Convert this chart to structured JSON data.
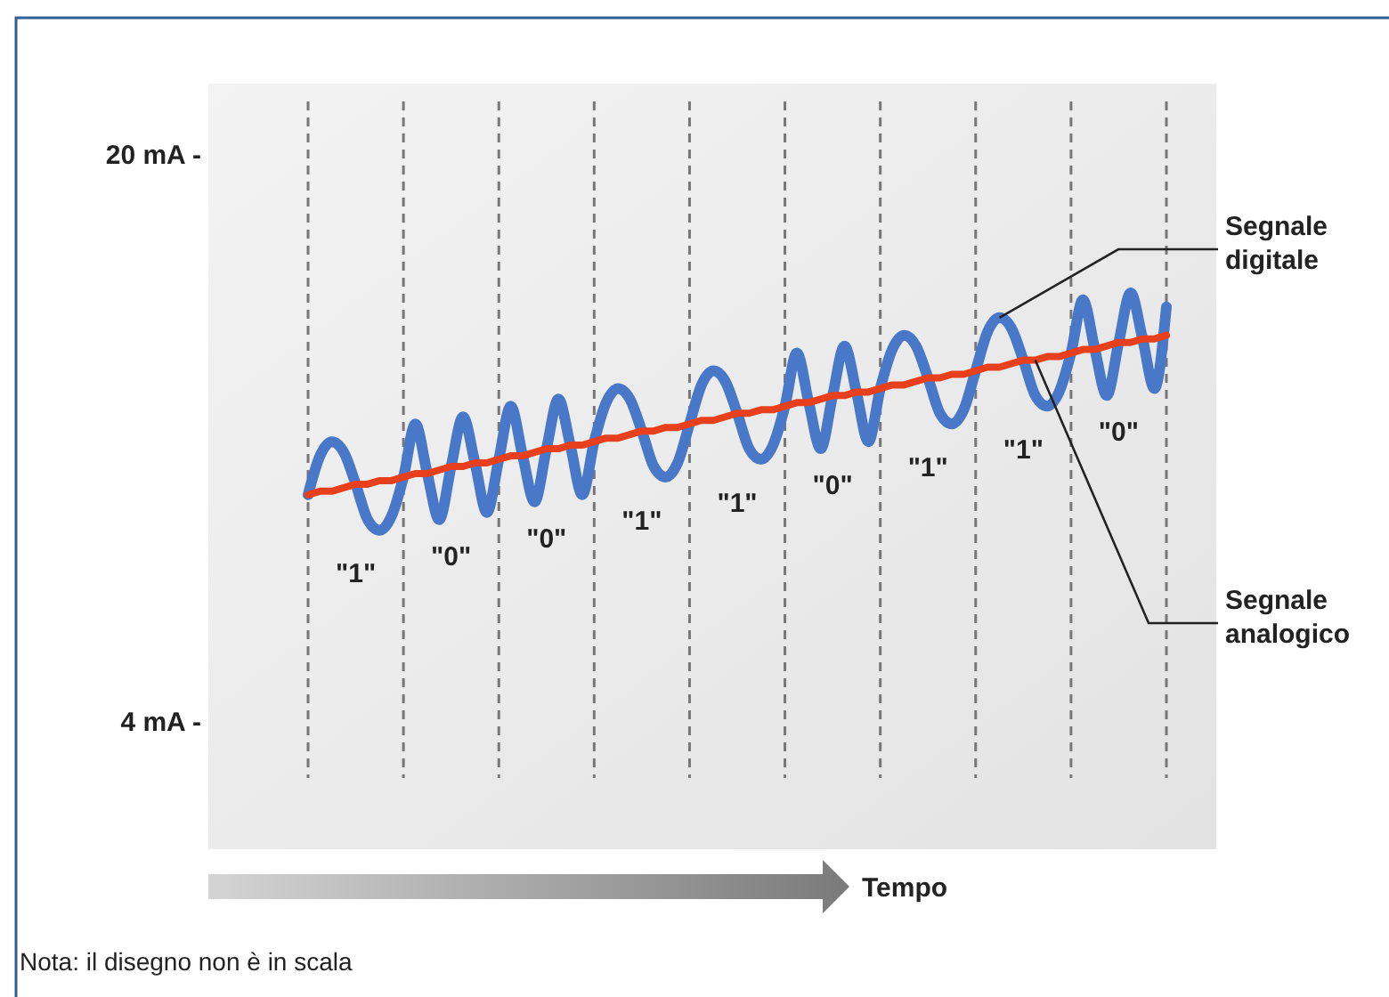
{
  "chart_data": {
    "type": "line",
    "xlabel": "Tempo",
    "categories": [
      null,
      null,
      null,
      null,
      null,
      null,
      null,
      null,
      null,
      null,
      null,
      null,
      null,
      null,
      null,
      null,
      null,
      null,
      null,
      null,
      null,
      null,
      null,
      null,
      null,
      null,
      null,
      null,
      null,
      null,
      null,
      null,
      null,
      null,
      null,
      null,
      null,
      null,
      null,
      null,
      null,
      null,
      null,
      null,
      null,
      null,
      null,
      null,
      null,
      null,
      null,
      null,
      null,
      null,
      null,
      null,
      null,
      null,
      null,
      null,
      null,
      null,
      null,
      null,
      null,
      null,
      null,
      null,
      null,
      null,
      null,
      null,
      null
    ],
    "ylim": [
      0.4,
      22
    ],
    "yticks": [
      {
        "value": 20,
        "label": "20 mA -"
      },
      {
        "value": 4,
        "label": "4 mA -"
      }
    ],
    "tick_labels": "y",
    "grid": "x",
    "legend": false,
    "marker": "none",
    "line_style": "solid",
    "series": [
      {
        "name": "Segnale digitale",
        "color": "#4a78c8",
        "values": [
          10.4,
          11.5,
          11.9,
          11.6,
          10.7,
          9.7,
          9.4,
          9.8,
          10.9,
          12.4,
          11.0,
          9.7,
          11.2,
          12.6,
          11.3,
          9.9,
          11.4,
          12.9,
          11.5,
          10.2,
          11.7,
          13.1,
          11.8,
          10.4,
          11.9,
          13.0,
          13.4,
          13.1,
          12.2,
          11.2,
          10.9,
          11.3,
          12.4,
          13.5,
          13.9,
          13.6,
          12.7,
          11.7,
          11.4,
          11.8,
          12.9,
          14.4,
          13.0,
          11.7,
          13.2,
          14.6,
          13.3,
          11.9,
          13.4,
          14.5,
          14.9,
          14.6,
          13.7,
          12.7,
          12.4,
          12.8,
          13.9,
          15.0,
          15.4,
          15.1,
          14.2,
          13.2,
          12.9,
          13.3,
          14.4,
          15.9,
          14.5,
          13.2,
          14.7,
          16.1,
          14.8,
          13.4,
          15.7
        ]
      },
      {
        "name": "Segnale analogico",
        "color": "#e8401c",
        "values": [
          10.4,
          10.5,
          10.5,
          10.6,
          10.7,
          10.7,
          10.8,
          10.8,
          10.9,
          11.0,
          11.0,
          11.1,
          11.2,
          11.2,
          11.3,
          11.3,
          11.4,
          11.5,
          11.5,
          11.6,
          11.7,
          11.7,
          11.8,
          11.8,
          11.9,
          12.0,
          12.0,
          12.1,
          12.2,
          12.2,
          12.3,
          12.3,
          12.4,
          12.5,
          12.5,
          12.6,
          12.7,
          12.7,
          12.8,
          12.8,
          12.9,
          13.0,
          13.0,
          13.1,
          13.2,
          13.2,
          13.3,
          13.3,
          13.4,
          13.5,
          13.5,
          13.6,
          13.7,
          13.7,
          13.8,
          13.8,
          13.9,
          14.0,
          14.0,
          14.1,
          14.2,
          14.2,
          14.3,
          14.3,
          14.4,
          14.5,
          14.5,
          14.6,
          14.7,
          14.7,
          14.8,
          14.8,
          14.9
        ]
      }
    ],
    "annotations": [
      "\"1\"",
      "\"0\"",
      "\"0\"",
      "\"1\"",
      "\"1\"",
      "\"0\"",
      "\"1\"",
      "\"1\"",
      "\"0\"",
      "Nota: il disegno non è in scala"
    ]
  }
}
